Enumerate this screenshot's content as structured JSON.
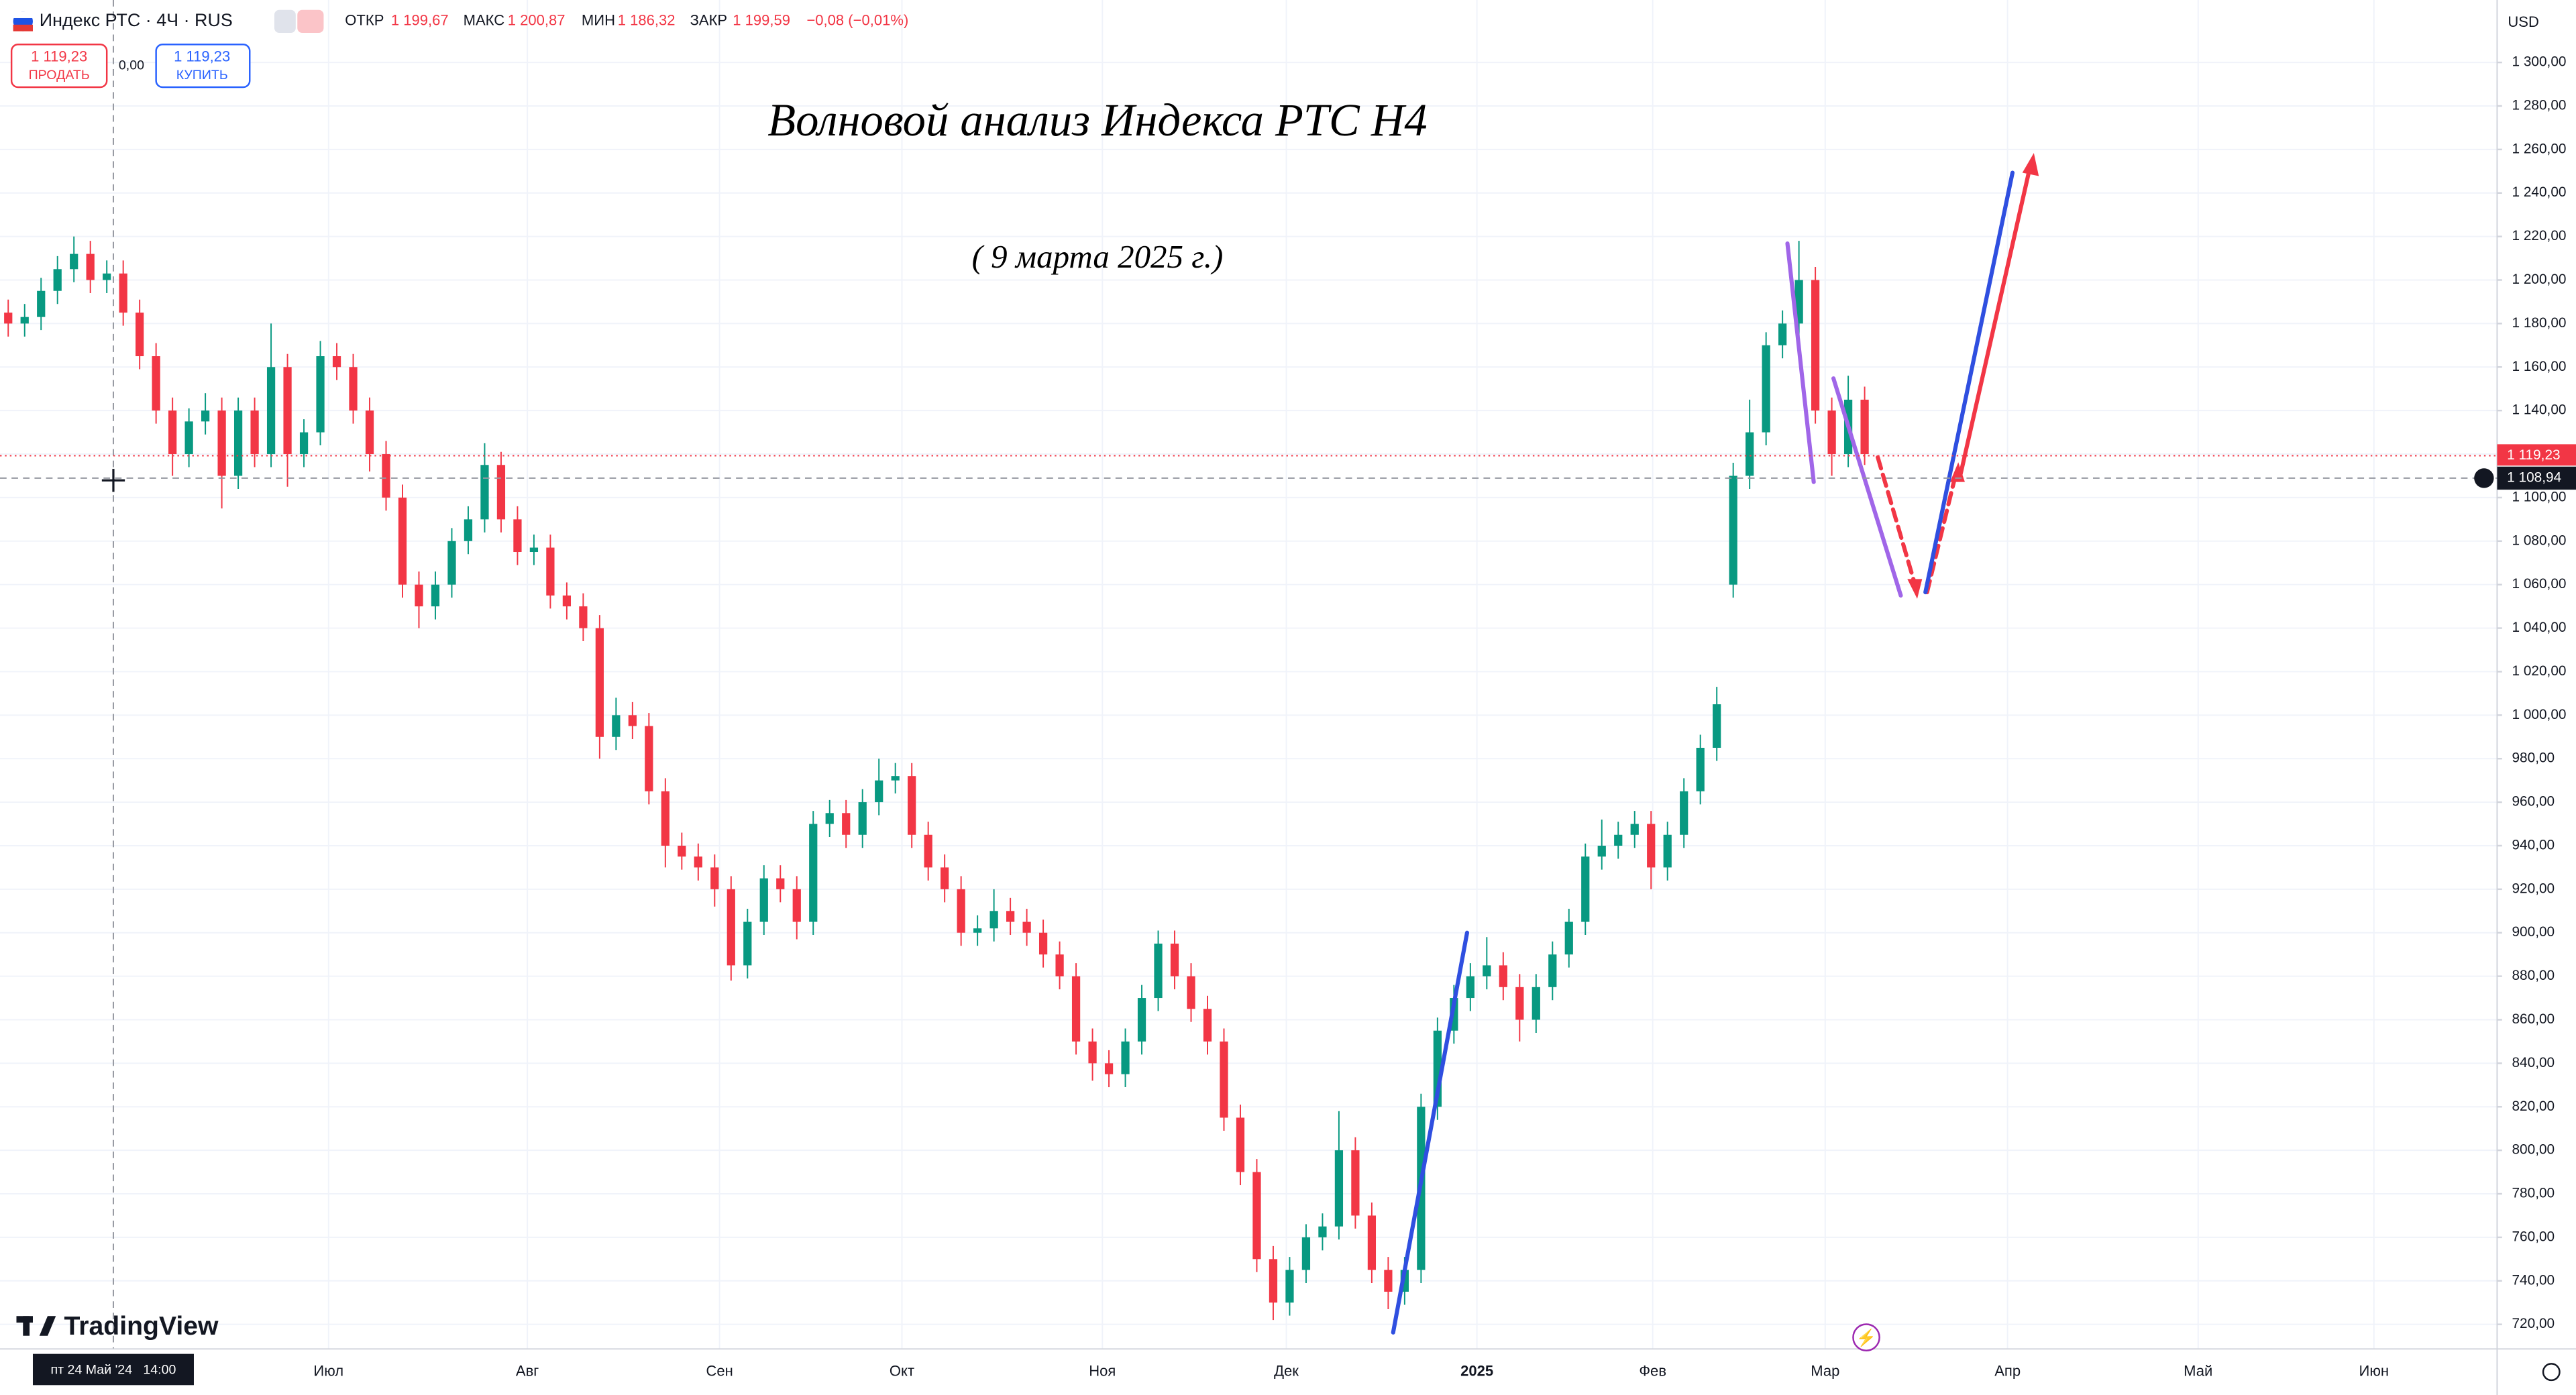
{
  "header": {
    "symbol": "Индекс РТС · 4Ч · RUS",
    "open_label": "ОТКР",
    "open": "1 199,67",
    "high_label": "МАКС",
    "high": "1 200,87",
    "low_label": "МИН",
    "low": "1 186,32",
    "close_label": "ЗАКР",
    "close": "1 199,59",
    "change": "−0,08 (−0,01%)",
    "sell_price": "1 119,23",
    "sell": "ПРОДАТЬ",
    "spread": "0,00",
    "buy_price": "1 119,23",
    "buy": "КУПИТЬ",
    "currency": "USD",
    "crosshair_time": "пт 24 Май '24   14:00",
    "brand": "TradingView"
  },
  "chart_data": {
    "type": "candlestick",
    "title": "Волновой анализ Индекса РТС H4",
    "subtitle": "( 9 марта 2025 г.)",
    "up_color": "#089981",
    "down_color": "#f23645",
    "grid": true,
    "categories": [
      null,
      null,
      null,
      null,
      null,
      null,
      null,
      null,
      null,
      null,
      null,
      null,
      null,
      null,
      null,
      null,
      null,
      null,
      null,
      null,
      null,
      null,
      null,
      null,
      null,
      null,
      null,
      null,
      null,
      null,
      null,
      null,
      null,
      null,
      null,
      null,
      null,
      null,
      null,
      null,
      null,
      null,
      null,
      null,
      null,
      null,
      null,
      null,
      null,
      null,
      null,
      null,
      null,
      null,
      null,
      null,
      null,
      null,
      null,
      null,
      null,
      null,
      null,
      null,
      null,
      null,
      null,
      null,
      null,
      null,
      null,
      null,
      null,
      null,
      null,
      null,
      null,
      null,
      null,
      null,
      null,
      null,
      null,
      null,
      null,
      null,
      null,
      null,
      null,
      null,
      null,
      null,
      null,
      null,
      null,
      null,
      null,
      null,
      null,
      null,
      null,
      null,
      null,
      null,
      null,
      null,
      null,
      null,
      null,
      null,
      null,
      null,
      null,
      null
    ],
    "open": [
      1185,
      1180,
      1183,
      1195,
      1205,
      1212,
      1200,
      1203,
      1185,
      1165,
      1140,
      1120,
      1135,
      1140,
      1110,
      1140,
      1120,
      1160,
      1120,
      1130,
      1165,
      1160,
      1140,
      1120,
      1100,
      1060,
      1050,
      1060,
      1080,
      1090,
      1115,
      1090,
      1075,
      1077,
      1055,
      1050,
      1040,
      990,
      1000,
      995,
      965,
      940,
      935,
      930,
      920,
      885,
      905,
      925,
      920,
      905,
      950,
      955,
      945,
      960,
      970,
      972,
      945,
      930,
      920,
      900,
      902,
      910,
      905,
      900,
      890,
      880,
      850,
      840,
      835,
      850,
      870,
      895,
      880,
      865,
      850,
      815,
      790,
      750,
      730,
      745,
      760,
      765,
      800,
      770,
      745,
      735,
      745,
      820,
      855,
      870,
      880,
      885,
      875,
      860,
      875,
      890,
      905,
      935,
      940,
      945,
      950,
      930,
      945,
      965,
      985,
      1060,
      1110,
      1130,
      1170,
      1180,
      1200,
      1140,
      1120,
      1145
    ],
    "high": [
      1191,
      1189,
      1201,
      1211,
      1220,
      1218,
      1209,
      1209,
      1191,
      1171,
      1146,
      1141,
      1148,
      1146,
      1146,
      1146,
      1180,
      1166,
      1136,
      1172,
      1171,
      1166,
      1146,
      1126,
      1106,
      1066,
      1066,
      1086,
      1096,
      1125,
      1121,
      1096,
      1083,
      1083,
      1061,
      1056,
      1046,
      1008,
      1006,
      1001,
      971,
      946,
      941,
      936,
      926,
      911,
      931,
      931,
      926,
      956,
      961,
      961,
      966,
      980,
      978,
      978,
      951,
      936,
      926,
      908,
      920,
      916,
      911,
      906,
      896,
      886,
      856,
      846,
      856,
      876,
      901,
      901,
      886,
      871,
      856,
      821,
      796,
      756,
      751,
      766,
      771,
      818,
      806,
      776,
      751,
      751,
      826,
      861,
      876,
      886,
      898,
      891,
      881,
      881,
      896,
      911,
      941,
      952,
      951,
      956,
      956,
      951,
      971,
      991,
      1013,
      1116,
      1145,
      1176,
      1186,
      1218,
      1206,
      1146,
      1156,
      1151
    ],
    "low": [
      1174,
      1174,
      1177,
      1189,
      1199,
      1194,
      1194,
      1179,
      1159,
      1134,
      1110,
      1114,
      1129,
      1095,
      1104,
      1114,
      1114,
      1105,
      1114,
      1124,
      1154,
      1134,
      1112,
      1094,
      1054,
      1040,
      1044,
      1054,
      1074,
      1084,
      1084,
      1069,
      1069,
      1049,
      1044,
      1034,
      980,
      984,
      989,
      959,
      930,
      929,
      924,
      912,
      878,
      879,
      899,
      914,
      897,
      899,
      944,
      939,
      939,
      954,
      964,
      939,
      924,
      914,
      894,
      894,
      896,
      899,
      894,
      884,
      874,
      844,
      832,
      829,
      829,
      844,
      864,
      874,
      859,
      844,
      809,
      784,
      744,
      722,
      724,
      739,
      754,
      759,
      764,
      739,
      727,
      729,
      739,
      814,
      849,
      864,
      874,
      869,
      850,
      854,
      869,
      884,
      899,
      929,
      934,
      939,
      920,
      924,
      939,
      959,
      979,
      1054,
      1104,
      1124,
      1164,
      1174,
      1134,
      1110,
      1114,
      1115
    ],
    "close": [
      1180,
      1183,
      1195,
      1205,
      1212,
      1200,
      1203,
      1185,
      1165,
      1140,
      1120,
      1135,
      1140,
      1110,
      1140,
      1120,
      1160,
      1120,
      1130,
      1165,
      1160,
      1140,
      1120,
      1100,
      1060,
      1050,
      1060,
      1080,
      1090,
      1115,
      1090,
      1075,
      1077,
      1055,
      1050,
      1040,
      990,
      1000,
      995,
      965,
      940,
      935,
      930,
      920,
      885,
      905,
      925,
      920,
      905,
      950,
      955,
      945,
      960,
      970,
      972,
      945,
      930,
      920,
      900,
      902,
      910,
      905,
      900,
      890,
      880,
      850,
      840,
      835,
      850,
      870,
      895,
      880,
      865,
      850,
      815,
      790,
      750,
      730,
      745,
      760,
      765,
      800,
      770,
      745,
      735,
      745,
      820,
      855,
      870,
      880,
      885,
      875,
      860,
      875,
      890,
      905,
      935,
      940,
      945,
      950,
      930,
      945,
      965,
      985,
      1005,
      1110,
      1130,
      1170,
      1180,
      1200,
      1140,
      1120,
      1145,
      1120
    ],
    "xlim": [
      -0.5,
      151.5
    ],
    "xticks": [
      {
        "value": 19.5,
        "label": "Июл"
      },
      {
        "value": 31.6,
        "label": "Авг"
      },
      {
        "value": 43.3,
        "label": "Сен"
      },
      {
        "value": 54.4,
        "label": "Окт"
      },
      {
        "value": 66.6,
        "label": "Ноя"
      },
      {
        "value": 77.8,
        "label": "Дек"
      },
      {
        "value": 89.4,
        "label": "2025"
      },
      {
        "value": 100.1,
        "label": "Фев"
      },
      {
        "value": 110.6,
        "label": "Мар"
      },
      {
        "value": 121.7,
        "label": "Апр"
      },
      {
        "value": 133.3,
        "label": "Май"
      },
      {
        "value": 144,
        "label": "Июн"
      }
    ],
    "ylim": [
      708.7,
      1328.7
    ],
    "yticks": [
      {
        "value": 720,
        "label": "720,00"
      },
      {
        "value": 740,
        "label": "740,00"
      },
      {
        "value": 760,
        "label": "760,00"
      },
      {
        "value": 780,
        "label": "780,00"
      },
      {
        "value": 800,
        "label": "800,00"
      },
      {
        "value": 820,
        "label": "820,00"
      },
      {
        "value": 840,
        "label": "840,00"
      },
      {
        "value": 860,
        "label": "860,00"
      },
      {
        "value": 880,
        "label": "880,00"
      },
      {
        "value": 900,
        "label": "900,00"
      },
      {
        "value": 920,
        "label": "920,00"
      },
      {
        "value": 940,
        "label": "940,00"
      },
      {
        "value": 960,
        "label": "960,00"
      },
      {
        "value": 980,
        "label": "980,00"
      },
      {
        "value": 1000,
        "label": "1 000,00"
      },
      {
        "value": 1020,
        "label": "1 020,00"
      },
      {
        "value": 1040,
        "label": "1 040,00"
      },
      {
        "value": 1060,
        "label": "1 060,00"
      },
      {
        "value": 1080,
        "label": "1 080,00"
      },
      {
        "value": 1100,
        "label": "1 100,00"
      },
      {
        "value": 1120,
        "label": "1 120,00"
      },
      {
        "value": 1140,
        "label": "1 140,00"
      },
      {
        "value": 1160,
        "label": "1 160,00"
      },
      {
        "value": 1180,
        "label": "1 180,00"
      },
      {
        "value": 1200,
        "label": "1 200,00"
      },
      {
        "value": 1220,
        "label": "1 220,00"
      },
      {
        "value": 1240,
        "label": "1 240,00"
      },
      {
        "value": 1260,
        "label": "1 260,00"
      },
      {
        "value": 1280,
        "label": "1 280,00"
      },
      {
        "value": 1300,
        "label": "1 300,00"
      }
    ],
    "last_price": {
      "value": 1119.23,
      "label": "1 119,23"
    },
    "crosshair_price": {
      "value": 1108.94,
      "label": "1 108,94"
    }
  }
}
